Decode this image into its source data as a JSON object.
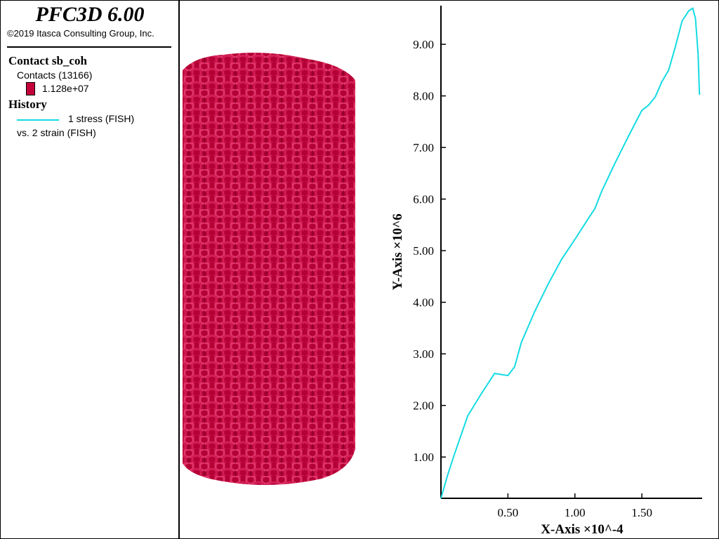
{
  "app": {
    "title": "PFC3D 6.00",
    "copyright": "©2019 Itasca Consulting Group, Inc."
  },
  "legend": {
    "contact": {
      "heading": "Contact sb_coh",
      "contacts_label": "Contacts (13166)",
      "swatch_value": "1.128e+07",
      "swatch_color": "#c4003a"
    },
    "history": {
      "heading": "History",
      "series_label": "1 stress (FISH)",
      "vs_label": "vs. 2 strain (FISH)",
      "line_color": "#14dbe3"
    }
  },
  "specimen": {
    "color": "#c4003a",
    "shape": "cylinder"
  },
  "chart_data": {
    "type": "line",
    "xlabel": "X-Axis ×10^-4",
    "ylabel": "Y-Axis ×10^6",
    "xlim": [
      0.0,
      1.95
    ],
    "ylim": [
      0.2,
      9.75
    ],
    "xticks": [
      0.5,
      1.0,
      1.5
    ],
    "xtick_labels": [
      "0.50",
      "1.00",
      "1.50"
    ],
    "yticks": [
      1,
      2,
      3,
      4,
      5,
      6,
      7,
      8,
      9
    ],
    "ytick_labels": [
      "1.00",
      "2.00",
      "3.00",
      "4.00",
      "5.00",
      "6.00",
      "7.00",
      "8.00",
      "9.00"
    ],
    "grid": false,
    "series": [
      {
        "color": "#14dbe3",
        "x": [
          0.0,
          0.05,
          0.1,
          0.2,
          0.3,
          0.4,
          0.5,
          0.55,
          0.6,
          0.7,
          0.8,
          0.9,
          1.0,
          1.1,
          1.15,
          1.2,
          1.3,
          1.4,
          1.5,
          1.55,
          1.6,
          1.65,
          1.7,
          1.75,
          1.8,
          1.85,
          1.88,
          1.9,
          1.92,
          1.93
        ],
        "y": [
          0.2,
          0.65,
          1.05,
          1.8,
          2.22,
          2.62,
          2.58,
          2.75,
          3.22,
          3.82,
          4.35,
          4.83,
          5.22,
          5.62,
          5.82,
          6.15,
          6.7,
          7.22,
          7.72,
          7.82,
          7.98,
          8.28,
          8.5,
          8.95,
          9.45,
          9.65,
          9.7,
          9.5,
          8.8,
          8.02
        ]
      }
    ]
  }
}
